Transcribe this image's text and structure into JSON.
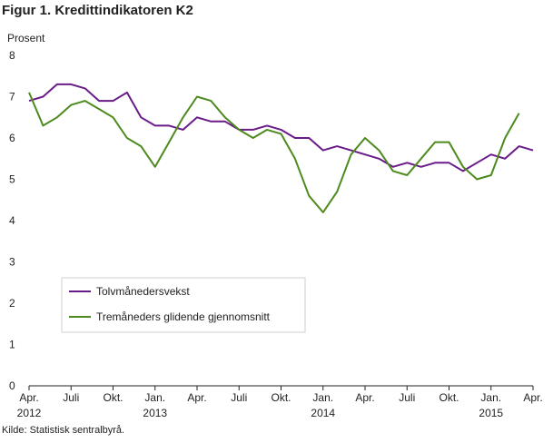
{
  "figure_title": "Figur 1. Kredittindikatoren K2",
  "source": "Kilde: Statistisk sentralbyrå.",
  "chart_data": {
    "type": "line",
    "ylabel": "Prosent",
    "xlabel": "",
    "ylim": [
      0,
      8
    ],
    "yticks": [
      0,
      1,
      2,
      3,
      4,
      5,
      6,
      7,
      8
    ],
    "grid": false,
    "legend": "bottom-left",
    "x_start": "2012-04",
    "xticks": [
      {
        "month": 0,
        "label": "Apr.",
        "year": "2012"
      },
      {
        "month": 3,
        "label": "Juli",
        "year": ""
      },
      {
        "month": 6,
        "label": "Okt.",
        "year": ""
      },
      {
        "month": 9,
        "label": "Jan.",
        "year": "2013"
      },
      {
        "month": 12,
        "label": "Apr.",
        "year": ""
      },
      {
        "month": 15,
        "label": "Juli",
        "year": ""
      },
      {
        "month": 18,
        "label": "Okt.",
        "year": ""
      },
      {
        "month": 21,
        "label": "Jan.",
        "year": "2014"
      },
      {
        "month": 24,
        "label": "Apr.",
        "year": ""
      },
      {
        "month": 27,
        "label": "Juli",
        "year": ""
      },
      {
        "month": 30,
        "label": "Okt.",
        "year": ""
      },
      {
        "month": 33,
        "label": "Jan.",
        "year": "2015"
      },
      {
        "month": 36,
        "label": "Apr.",
        "year": ""
      }
    ],
    "series": [
      {
        "name": "Tolvmånedersvekst",
        "color": "#6a1b8a",
        "values": [
          6.9,
          7.0,
          7.3,
          7.3,
          7.2,
          6.9,
          6.9,
          7.1,
          6.5,
          6.3,
          6.3,
          6.2,
          6.5,
          6.4,
          6.4,
          6.2,
          6.2,
          6.3,
          6.2,
          6.0,
          6.0,
          5.7,
          5.8,
          5.7,
          5.6,
          5.5,
          5.3,
          5.4,
          5.3,
          5.4,
          5.4,
          5.2,
          5.4,
          5.6,
          5.5,
          5.8,
          5.7
        ]
      },
      {
        "name": "Tremåneders glidende gjennomsnitt",
        "color": "#4d8a1e",
        "values": [
          7.1,
          6.3,
          6.5,
          6.8,
          6.9,
          6.7,
          6.5,
          6.0,
          5.8,
          5.3,
          5.9,
          6.5,
          7.0,
          6.9,
          6.5,
          6.2,
          6.0,
          6.2,
          6.1,
          5.5,
          4.6,
          4.2,
          4.7,
          5.6,
          6.0,
          5.7,
          5.2,
          5.1,
          5.5,
          5.9,
          5.9,
          5.3,
          5.0,
          5.1,
          6.0,
          6.6
        ]
      }
    ]
  }
}
